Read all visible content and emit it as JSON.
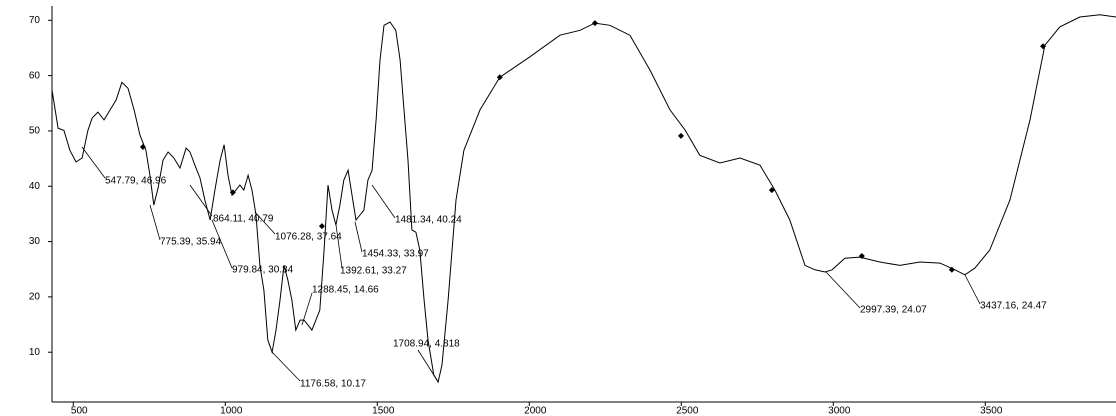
{
  "chart_data": {
    "type": "line",
    "xlim": [
      430,
      3930
    ],
    "ylim": [
      1,
      71.5
    ],
    "xticks": [
      500,
      1000,
      1500,
      2000,
      2500,
      3000,
      3500
    ],
    "yticks": [
      10,
      20,
      30,
      40,
      50,
      60,
      70
    ],
    "color": "#000000",
    "x": [
      430,
      450,
      469,
      489,
      509,
      529,
      548,
      562,
      581,
      601,
      621,
      641,
      660,
      680,
      700,
      719,
      739,
      752,
      765,
      779,
      795,
      812,
      831,
      851,
      871,
      884,
      900,
      917,
      933,
      950,
      966,
      983,
      996,
      1009,
      1022,
      1035,
      1048,
      1061,
      1075,
      1088,
      1101,
      1114,
      1127,
      1140,
      1154,
      1167,
      1180,
      1193,
      1206,
      1219,
      1232,
      1246,
      1259,
      1272,
      1285,
      1298,
      1311,
      1325,
      1338,
      1351,
      1364,
      1377,
      1390,
      1404,
      1417,
      1430,
      1443,
      1456,
      1469,
      1483,
      1496,
      1509,
      1522,
      1542,
      1561,
      1575,
      1588,
      1601,
      1614,
      1627,
      1640,
      1654,
      1667,
      1686,
      1700,
      1713,
      1733,
      1759,
      1785,
      1838,
      1903,
      2002,
      2101,
      2167,
      2216,
      2265,
      2331,
      2397,
      2463,
      2512,
      2561,
      2627,
      2693,
      2759,
      2808,
      2857,
      2907,
      2940,
      2973,
      2996,
      3038,
      3087,
      3153,
      3219,
      3285,
      3351,
      3400,
      3433,
      3466,
      3515,
      3581,
      3647,
      3696,
      3745,
      3811,
      3877,
      3930
    ],
    "values": [
      57.4,
      50.5,
      50.1,
      46.5,
      44.4,
      45.1,
      50.1,
      52.3,
      53.4,
      52.0,
      53.8,
      55.6,
      58.8,
      57.7,
      53.8,
      49.3,
      46.5,
      42.0,
      36.6,
      39.7,
      44.7,
      46.2,
      45.1,
      43.3,
      46.9,
      46.2,
      43.8,
      41.5,
      37.5,
      33.9,
      39.3,
      44.7,
      47.5,
      42.0,
      38.4,
      39.3,
      40.2,
      39.3,
      42.0,
      39.3,
      34.8,
      25.7,
      21.2,
      12.2,
      10.0,
      14.0,
      19.4,
      25.7,
      23.0,
      19.4,
      14.0,
      15.8,
      15.8,
      14.9,
      14.0,
      15.8,
      17.6,
      28.5,
      40.2,
      35.7,
      33.0,
      36.6,
      41.1,
      42.9,
      38.4,
      33.9,
      34.8,
      35.7,
      41.1,
      42.9,
      52.0,
      62.8,
      69.1,
      69.7,
      68.2,
      62.8,
      53.8,
      44.7,
      32.1,
      31.7,
      28.5,
      19.4,
      12.2,
      5.9,
      4.6,
      7.7,
      19.4,
      37.5,
      46.5,
      53.8,
      59.7,
      63.4,
      67.3,
      68.2,
      69.5,
      69.1,
      67.3,
      61.0,
      53.8,
      50.2,
      45.6,
      44.2,
      45.1,
      43.8,
      39.3,
      33.9,
      25.7,
      24.9,
      24.5,
      24.9,
      27.0,
      27.2,
      26.3,
      25.7,
      26.3,
      26.1,
      24.9,
      24.0,
      25.2,
      28.5,
      37.5,
      52.0,
      65.5,
      68.8,
      70.6,
      71.0,
      70.6
    ],
    "markers": {
      "x": [
        729,
        1025,
        1318,
        1903,
        2216,
        2499,
        2798,
        3094,
        3390,
        3690
      ],
      "values": [
        47.1,
        38.9,
        32.8,
        59.7,
        69.5,
        49.1,
        39.3,
        27.4,
        24.9,
        65.3
      ]
    },
    "annotations": [
      "547.79, 46.96",
      "775.39, 35.94",
      "864.11, 40.79",
      "979.84, 30.34",
      "1076.28, 37.64",
      "1176.58, 10.17",
      "1288.45, 14.66",
      "1392.61, 33.27",
      "1454.33, 33.97",
      "1481.34, 40.24",
      "1708.94, 4.818",
      "2997.39, 24.07",
      "3437.16, 24.47"
    ]
  }
}
